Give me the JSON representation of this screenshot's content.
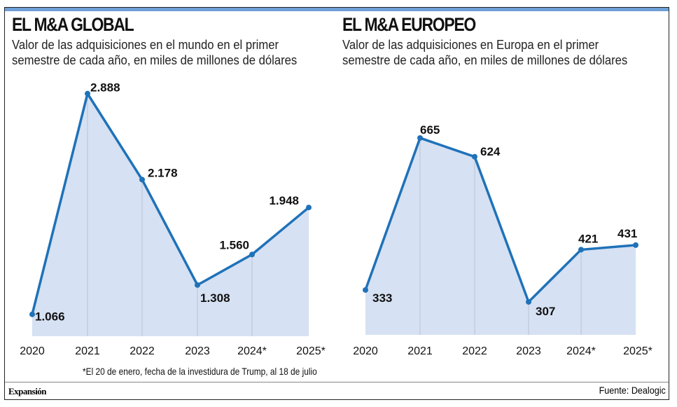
{
  "colors": {
    "line": "#1f72b8",
    "fill": "#d6e1f3",
    "grid": "#b9c3d2",
    "accent": "#6e9fd6"
  },
  "chart_data": [
    {
      "type": "area",
      "title": "EL M&A GLOBAL",
      "subtitle": [
        "Valor de las adquisiciones en el mundo en el primer",
        "semestre de cada año, en miles de millones de dólares"
      ],
      "categories": [
        "2020",
        "2021",
        "2022",
        "2023",
        "2024*",
        "2025*"
      ],
      "values": [
        1066,
        2888,
        2178,
        1308,
        1560,
        1948
      ],
      "labels": [
        "1.066",
        "2.888",
        "2.178",
        "1.308",
        "1.560",
        "1.948"
      ],
      "xlabel": "",
      "ylabel": ""
    },
    {
      "type": "area",
      "title": "EL M&A EUROPEO",
      "subtitle": [
        "Valor de las adquisiciones en Europa en el primer",
        "semestre de cada año, en miles de millones de dólares"
      ],
      "categories": [
        "2020",
        "2021",
        "2022",
        "2023",
        "2024*",
        "2025*"
      ],
      "values": [
        333,
        665,
        624,
        307,
        421,
        431
      ],
      "labels": [
        "333",
        "665",
        "624",
        "307",
        "421",
        "431"
      ],
      "xlabel": "",
      "ylabel": ""
    }
  ],
  "note": "*El 20 de enero, fecha de la investidura de Trump, al 18 de julio",
  "brand": "Expansión",
  "source": "Fuente: Dealogic"
}
